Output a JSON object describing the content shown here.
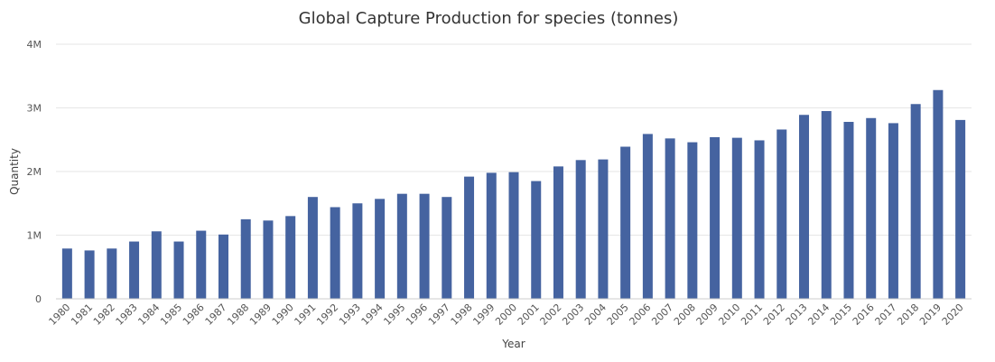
{
  "chart_data": {
    "type": "bar",
    "title": "Global Capture Production for species (tonnes)",
    "xlabel": "Year",
    "ylabel": "Quantity",
    "ylim": [
      0,
      4000000
    ],
    "y_ticks": [
      {
        "value": 0,
        "label": "0"
      },
      {
        "value": 1000000,
        "label": "1M"
      },
      {
        "value": 2000000,
        "label": "2M"
      },
      {
        "value": 3000000,
        "label": "3M"
      },
      {
        "value": 4000000,
        "label": "4M"
      }
    ],
    "grid": true,
    "bar_color": "#4563a0",
    "categories": [
      "1980",
      "1981",
      "1982",
      "1983",
      "1984",
      "1985",
      "1986",
      "1987",
      "1988",
      "1989",
      "1990",
      "1991",
      "1992",
      "1993",
      "1994",
      "1995",
      "1996",
      "1997",
      "1998",
      "1999",
      "2000",
      "2001",
      "2002",
      "2003",
      "2004",
      "2005",
      "2006",
      "2007",
      "2008",
      "2009",
      "2010",
      "2011",
      "2012",
      "2013",
      "2014",
      "2015",
      "2016",
      "2017",
      "2018",
      "2019",
      "2020"
    ],
    "values": [
      790000,
      760000,
      790000,
      900000,
      1060000,
      900000,
      1070000,
      1010000,
      1250000,
      1230000,
      1300000,
      1600000,
      1440000,
      1500000,
      1570000,
      1650000,
      1650000,
      1600000,
      1920000,
      1980000,
      1990000,
      1850000,
      2080000,
      2180000,
      2190000,
      2390000,
      2590000,
      2520000,
      2460000,
      2540000,
      2530000,
      2490000,
      2660000,
      2890000,
      2950000,
      2780000,
      2840000,
      2760000,
      3060000,
      3280000,
      2810000
    ]
  }
}
